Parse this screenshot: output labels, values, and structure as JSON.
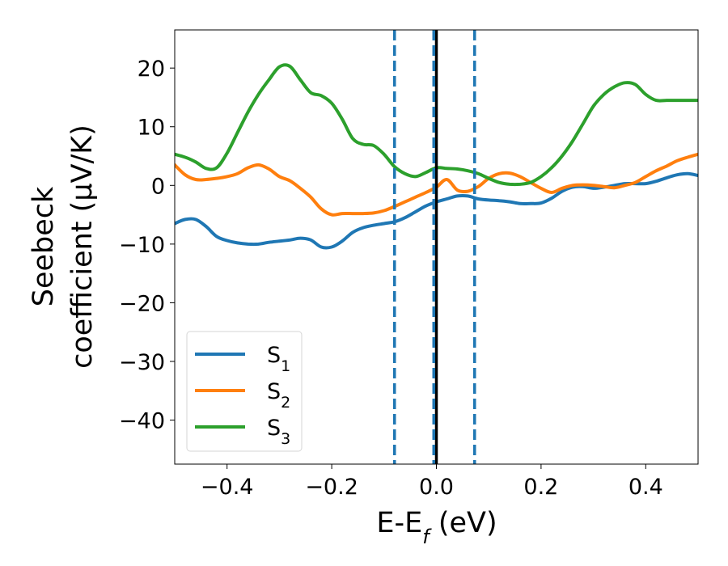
{
  "chart_data": {
    "type": "line",
    "xlabel": {
      "main": "E-E",
      "sub": "f",
      "suffix": " (eV)"
    },
    "ylabel": {
      "line1": "Seebeck",
      "line2": "coefficient  (μV/K)"
    },
    "xlim": [
      -0.5,
      0.5
    ],
    "ylim": [
      -47.5,
      26.5
    ],
    "xticks": [
      -0.4,
      -0.2,
      0.0,
      0.2,
      0.4
    ],
    "xtick_labels": [
      "−0.4",
      "−0.2",
      "0.0",
      "0.2",
      "0.4"
    ],
    "yticks": [
      -40,
      -30,
      -20,
      -10,
      0,
      10,
      20
    ],
    "ytick_labels": [
      "−40",
      "−30",
      "−20",
      "−10",
      "0",
      "10",
      "20"
    ],
    "grid": false,
    "legend_position": "lower-left",
    "vlines": [
      {
        "x": 0.0,
        "style": "solid",
        "color": "#000000"
      },
      {
        "x": -0.08,
        "style": "dashed",
        "color": "#1f77b4"
      },
      {
        "x": -0.005,
        "style": "dashed",
        "color": "#1f77b4"
      },
      {
        "x": 0.073,
        "style": "dashed",
        "color": "#1f77b4"
      }
    ],
    "series": [
      {
        "name": "S",
        "sub": "1",
        "color": "#1f77b4",
        "x": [
          -0.5,
          -0.48,
          -0.46,
          -0.44,
          -0.42,
          -0.4,
          -0.38,
          -0.36,
          -0.34,
          -0.32,
          -0.3,
          -0.28,
          -0.26,
          -0.24,
          -0.22,
          -0.2,
          -0.18,
          -0.16,
          -0.14,
          -0.12,
          -0.1,
          -0.08,
          -0.06,
          -0.04,
          -0.02,
          0.0,
          0.02,
          0.04,
          0.06,
          0.08,
          0.1,
          0.12,
          0.14,
          0.16,
          0.18,
          0.2,
          0.22,
          0.24,
          0.26,
          0.28,
          0.3,
          0.32,
          0.34,
          0.36,
          0.38,
          0.4,
          0.42,
          0.44,
          0.46,
          0.48,
          0.5
        ],
        "y": [
          -6.5,
          -5.8,
          -5.8,
          -7.0,
          -8.7,
          -9.4,
          -9.8,
          -10.0,
          -10.0,
          -9.7,
          -9.5,
          -9.3,
          -9.0,
          -9.3,
          -10.5,
          -10.5,
          -9.5,
          -8.0,
          -7.2,
          -6.8,
          -6.5,
          -6.2,
          -5.5,
          -4.5,
          -3.5,
          -2.8,
          -2.3,
          -1.8,
          -1.8,
          -2.3,
          -2.5,
          -2.6,
          -2.8,
          -3.1,
          -3.1,
          -3.0,
          -2.2,
          -1.0,
          -0.3,
          -0.2,
          -0.5,
          -0.3,
          0.0,
          0.3,
          0.3,
          0.3,
          0.7,
          1.3,
          1.8,
          2.0,
          1.7
        ]
      },
      {
        "name": "S",
        "sub": "2",
        "color": "#ff7f0e",
        "x": [
          -0.5,
          -0.48,
          -0.46,
          -0.44,
          -0.42,
          -0.4,
          -0.38,
          -0.36,
          -0.34,
          -0.32,
          -0.3,
          -0.28,
          -0.26,
          -0.24,
          -0.22,
          -0.2,
          -0.18,
          -0.16,
          -0.14,
          -0.12,
          -0.1,
          -0.08,
          -0.06,
          -0.04,
          -0.02,
          0.0,
          0.02,
          0.04,
          0.06,
          0.08,
          0.1,
          0.12,
          0.14,
          0.16,
          0.18,
          0.2,
          0.22,
          0.24,
          0.26,
          0.28,
          0.3,
          0.32,
          0.34,
          0.36,
          0.38,
          0.4,
          0.42,
          0.44,
          0.46,
          0.48,
          0.5
        ],
        "y": [
          3.5,
          1.8,
          1.0,
          1.0,
          1.2,
          1.5,
          2.0,
          3.0,
          3.5,
          2.8,
          1.5,
          0.8,
          -0.5,
          -2.0,
          -4.0,
          -5.0,
          -4.8,
          -4.8,
          -4.8,
          -4.7,
          -4.3,
          -3.6,
          -2.8,
          -2.0,
          -1.2,
          -0.3,
          1.0,
          -0.8,
          -1.0,
          -0.2,
          1.2,
          2.0,
          2.1,
          1.5,
          0.5,
          -0.5,
          -1.2,
          -0.5,
          0.0,
          0.1,
          0.0,
          -0.2,
          -0.4,
          0.0,
          0.5,
          1.5,
          2.5,
          3.3,
          4.2,
          4.8,
          5.3
        ]
      },
      {
        "name": "S",
        "sub": "3",
        "color": "#2ca02c",
        "x": [
          -0.5,
          -0.48,
          -0.46,
          -0.44,
          -0.42,
          -0.4,
          -0.38,
          -0.36,
          -0.34,
          -0.32,
          -0.3,
          -0.28,
          -0.26,
          -0.24,
          -0.22,
          -0.2,
          -0.18,
          -0.16,
          -0.14,
          -0.12,
          -0.1,
          -0.08,
          -0.06,
          -0.04,
          -0.02,
          0.0,
          0.02,
          0.04,
          0.06,
          0.08,
          0.1,
          0.12,
          0.14,
          0.16,
          0.18,
          0.2,
          0.22,
          0.24,
          0.26,
          0.28,
          0.3,
          0.32,
          0.34,
          0.36,
          0.38,
          0.4,
          0.42,
          0.44,
          0.46,
          0.48,
          0.5
        ],
        "y": [
          5.3,
          4.8,
          4.0,
          2.9,
          3.0,
          5.5,
          9.0,
          12.5,
          15.5,
          18.0,
          20.2,
          20.3,
          18.0,
          15.8,
          15.3,
          14.0,
          11.3,
          8.0,
          7.0,
          6.8,
          5.3,
          3.2,
          2.0,
          1.5,
          2.2,
          3.0,
          2.9,
          2.8,
          2.5,
          2.0,
          1.2,
          0.5,
          0.2,
          0.2,
          0.5,
          1.5,
          3.0,
          5.0,
          7.5,
          10.5,
          13.5,
          15.5,
          16.8,
          17.5,
          17.2,
          15.5,
          14.5,
          14.5,
          14.5,
          14.5,
          14.5
        ]
      }
    ]
  }
}
